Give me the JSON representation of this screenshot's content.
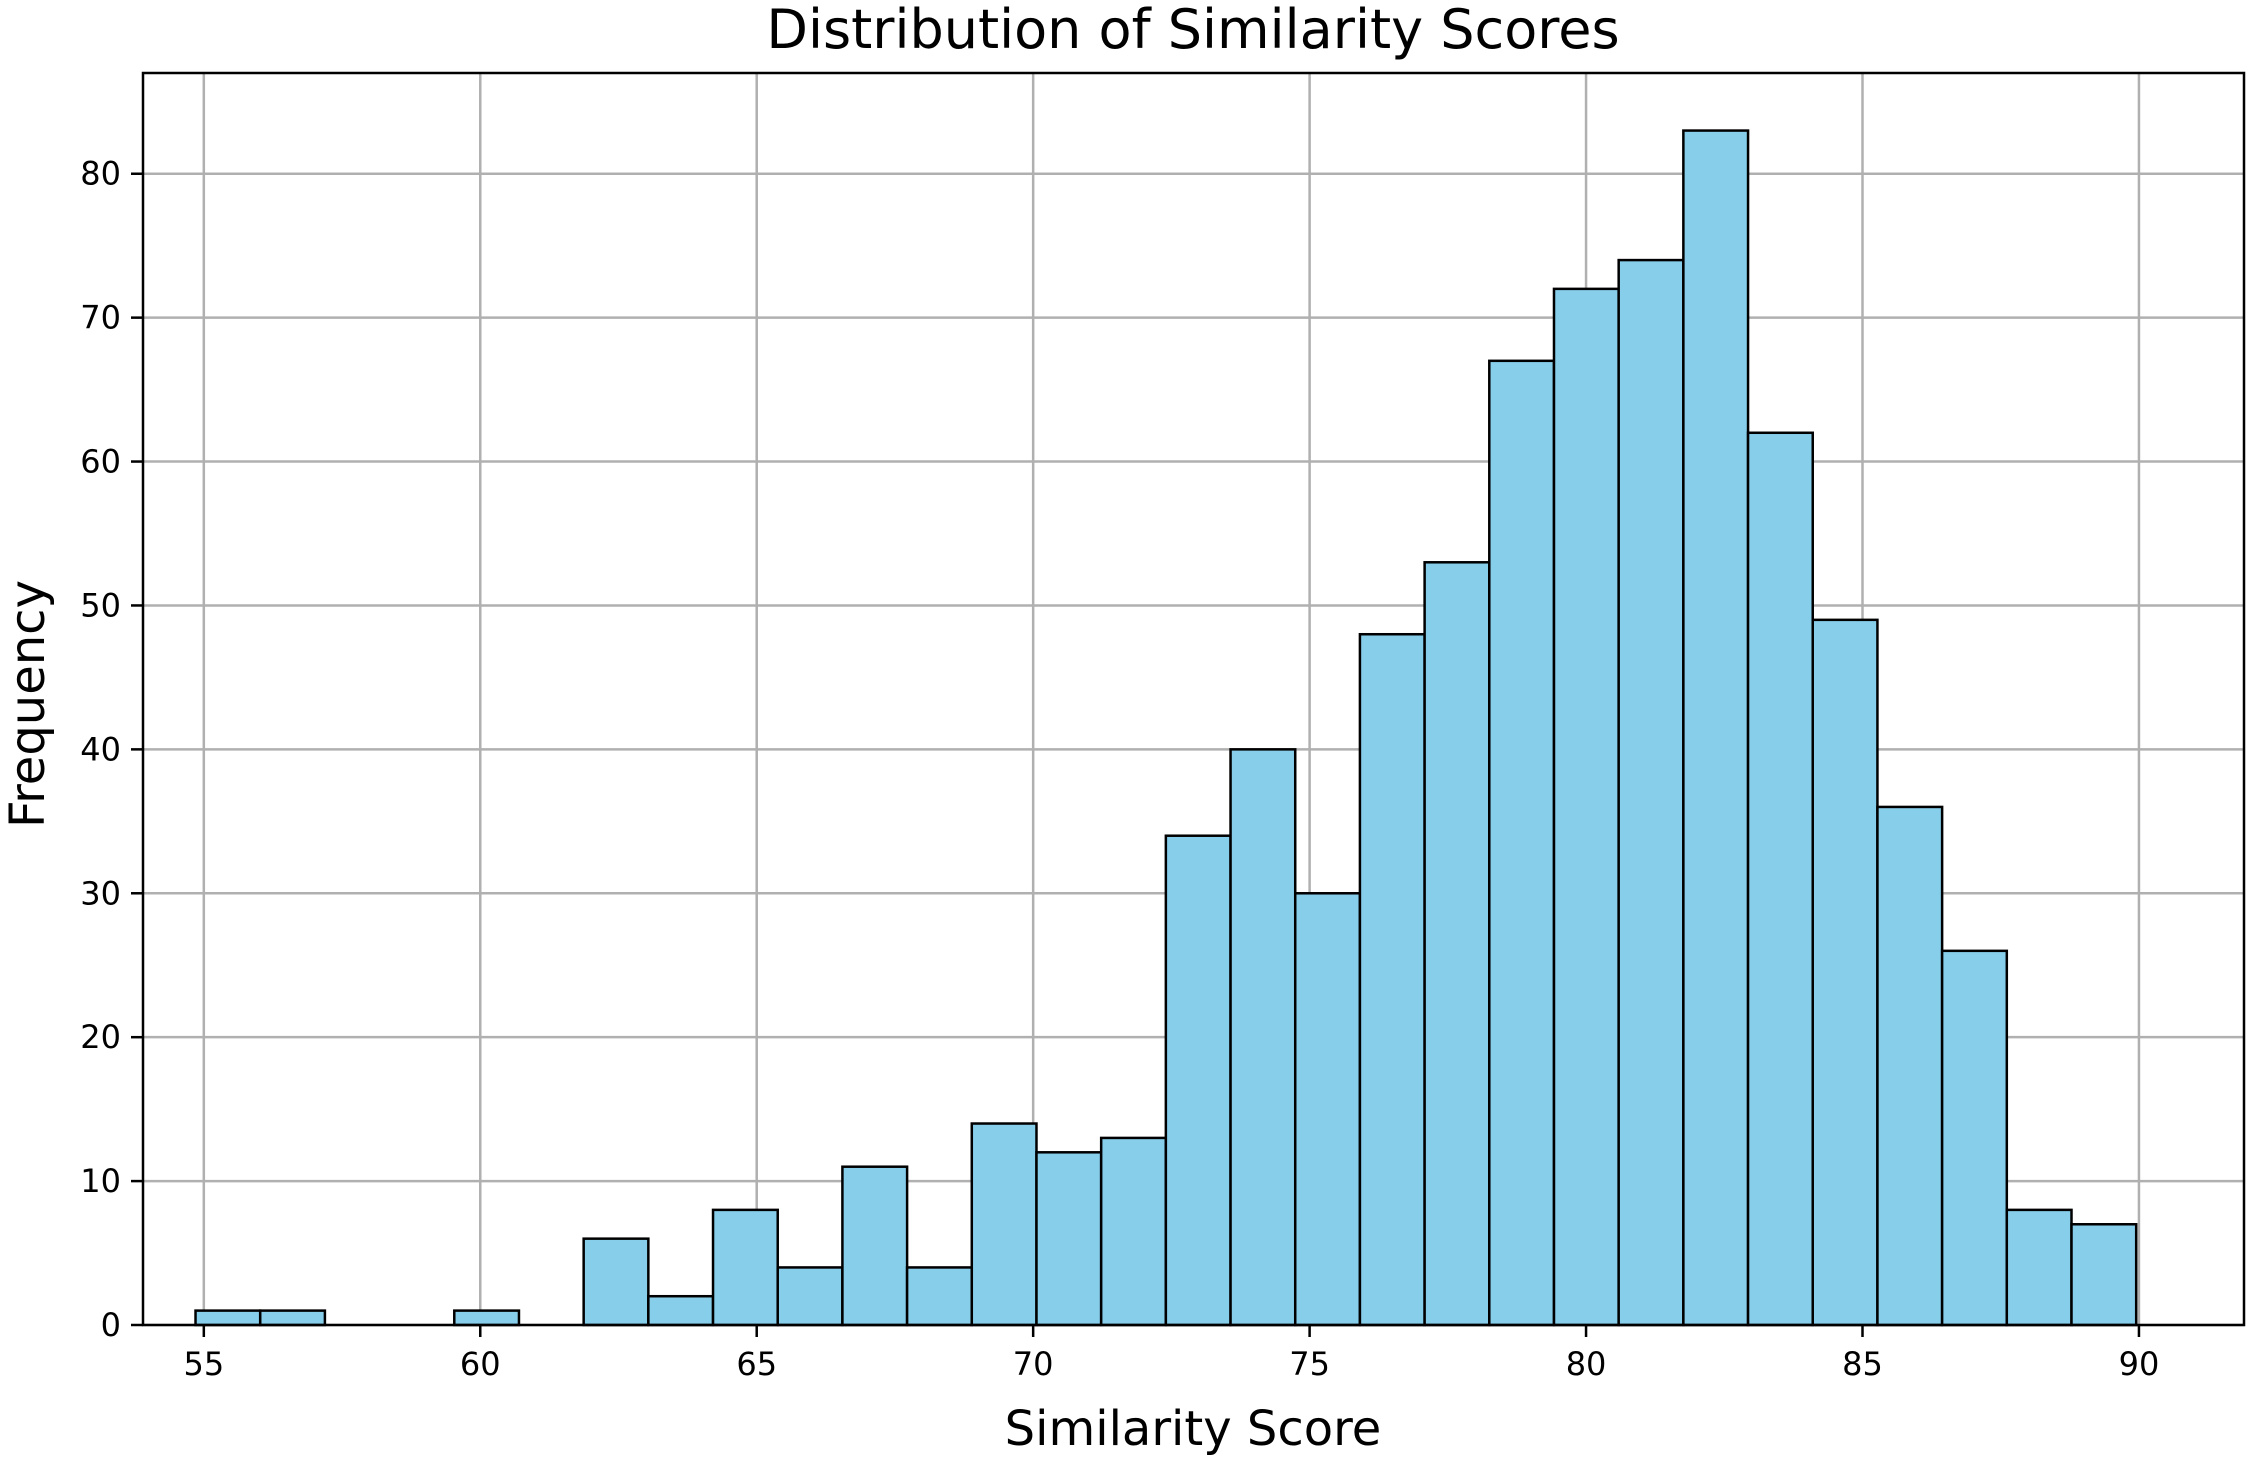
{
  "chart_data": {
    "type": "bar",
    "title": "Distribution of Similarity Scores",
    "xlabel": "Similarity Score",
    "ylabel": "Frequency",
    "xlim": [
      53.9,
      91.9
    ],
    "ylim": [
      0,
      87
    ],
    "x_ticks": [
      55,
      60,
      65,
      70,
      75,
      80,
      85,
      90
    ],
    "y_ticks": [
      0,
      10,
      20,
      30,
      40,
      50,
      60,
      70,
      80
    ],
    "grid": true,
    "bar_color": "#87CEEB",
    "edge_color": "#000000",
    "grid_color": "#b0b0b0",
    "bins": [
      {
        "x0": 54.85,
        "x1": 56.02,
        "count": 1
      },
      {
        "x0": 56.02,
        "x1": 57.19,
        "count": 1
      },
      {
        "x0": 57.19,
        "x1": 58.36,
        "count": 0
      },
      {
        "x0": 58.36,
        "x1": 59.53,
        "count": 0
      },
      {
        "x0": 59.53,
        "x1": 60.7,
        "count": 1
      },
      {
        "x0": 60.7,
        "x1": 61.87,
        "count": 0
      },
      {
        "x0": 61.87,
        "x1": 63.04,
        "count": 6
      },
      {
        "x0": 63.04,
        "x1": 64.21,
        "count": 2
      },
      {
        "x0": 64.21,
        "x1": 65.38,
        "count": 8
      },
      {
        "x0": 65.38,
        "x1": 66.55,
        "count": 4
      },
      {
        "x0": 66.55,
        "x1": 67.72,
        "count": 11
      },
      {
        "x0": 67.72,
        "x1": 68.89,
        "count": 4
      },
      {
        "x0": 68.89,
        "x1": 70.06,
        "count": 14
      },
      {
        "x0": 70.06,
        "x1": 71.23,
        "count": 12
      },
      {
        "x0": 71.23,
        "x1": 72.4,
        "count": 13
      },
      {
        "x0": 72.4,
        "x1": 73.57,
        "count": 34
      },
      {
        "x0": 73.57,
        "x1": 74.74,
        "count": 40
      },
      {
        "x0": 74.74,
        "x1": 75.91,
        "count": 30
      },
      {
        "x0": 75.91,
        "x1": 77.08,
        "count": 48
      },
      {
        "x0": 77.08,
        "x1": 78.25,
        "count": 53
      },
      {
        "x0": 78.25,
        "x1": 79.42,
        "count": 67
      },
      {
        "x0": 79.42,
        "x1": 80.59,
        "count": 72
      },
      {
        "x0": 80.59,
        "x1": 81.76,
        "count": 74
      },
      {
        "x0": 81.76,
        "x1": 82.93,
        "count": 83
      },
      {
        "x0": 82.93,
        "x1": 84.1,
        "count": 62
      },
      {
        "x0": 84.1,
        "x1": 85.27,
        "count": 49
      },
      {
        "x0": 85.27,
        "x1": 86.44,
        "count": 36
      },
      {
        "x0": 86.44,
        "x1": 87.61,
        "count": 26
      },
      {
        "x0": 87.61,
        "x1": 88.78,
        "count": 8
      },
      {
        "x0": 88.78,
        "x1": 89.95,
        "count": 7
      }
    ]
  }
}
